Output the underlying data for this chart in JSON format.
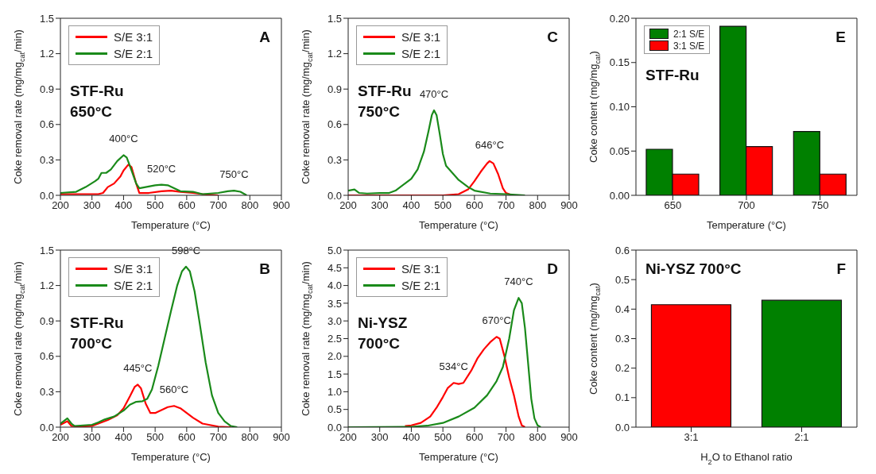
{
  "chart_data": [
    {
      "type": "line",
      "xlabel": "Temperature (°C)",
      "ylabel": "Coke removal rate (mg/mg$_{cat}$/min)",
      "xlim": [
        200,
        900
      ],
      "xticks": [
        200,
        300,
        400,
        500,
        600,
        700,
        800,
        900
      ],
      "ylim": [
        0,
        1.5
      ],
      "yticks": [
        {
          "value": 0,
          "label": "0.0"
        },
        0.3,
        0.6,
        0.9,
        1.2,
        1.5
      ],
      "legend": "top left",
      "annotations": [
        "A",
        "STF-Ru\n650°C",
        {
          "text": "400°C",
          "x": 400,
          "y": 0.34
        },
        {
          "text": "520°C",
          "x": 520,
          "y": 0.09
        },
        {
          "text": "750°C",
          "x": 750,
          "y": 0.04
        }
      ],
      "series": [
        {
          "name": "S/E 3:1",
          "color": "#ff0000",
          "x": [
            200,
            320,
            335,
            350,
            370,
            390,
            400,
            415,
            425,
            440,
            450,
            480,
            520,
            550,
            580,
            620,
            650,
            700
          ],
          "values": [
            0.01,
            0.01,
            0.02,
            0.07,
            0.1,
            0.16,
            0.21,
            0.26,
            0.24,
            0.1,
            0.02,
            0.02,
            0.035,
            0.04,
            0.03,
            0.02,
            0.01,
            0
          ]
        },
        {
          "name": "S/E 2:1",
          "color": "#1a8a1a",
          "x": [
            200,
            250,
            280,
            310,
            320,
            330,
            345,
            360,
            380,
            400,
            410,
            420,
            440,
            450,
            470,
            500,
            520,
            540,
            560,
            580,
            620,
            650,
            700,
            730,
            750,
            770,
            790
          ],
          "values": [
            0.02,
            0.03,
            0.07,
            0.12,
            0.14,
            0.19,
            0.19,
            0.22,
            0.29,
            0.34,
            0.32,
            0.25,
            0.1,
            0.06,
            0.07,
            0.085,
            0.09,
            0.085,
            0.06,
            0.035,
            0.03,
            0.01,
            0.02,
            0.035,
            0.04,
            0.03,
            0
          ]
        }
      ]
    },
    {
      "type": "line",
      "xlabel": "Temperature (°C)",
      "ylabel": "Coke removal rate (mg/mg$_{cat}$/min)",
      "xlim": [
        200,
        900
      ],
      "xticks": [
        200,
        300,
        400,
        500,
        600,
        700,
        800,
        900
      ],
      "ylim": [
        0,
        1.5
      ],
      "yticks": [
        {
          "value": 0,
          "label": "0.0"
        },
        0.3,
        0.6,
        0.9,
        1.2,
        1.5
      ],
      "legend": "top left",
      "annotations": [
        "C",
        "STF-Ru\n750°C",
        {
          "text": "470°C",
          "x": 472,
          "y": 0.72
        },
        {
          "text": "646°C",
          "x": 648,
          "y": 0.29
        }
      ],
      "series": [
        {
          "name": "S/E 3:1",
          "color": "#ff0000",
          "x": [
            200,
            500,
            550,
            580,
            600,
            620,
            640,
            648,
            660,
            675,
            690,
            700,
            720
          ],
          "values": [
            0,
            0,
            0.01,
            0.05,
            0.12,
            0.2,
            0.27,
            0.29,
            0.27,
            0.18,
            0.06,
            0.02,
            0
          ]
        },
        {
          "name": "S/E 2:1",
          "color": "#1a8a1a",
          "x": [
            200,
            220,
            235,
            260,
            300,
            330,
            350,
            380,
            400,
            420,
            440,
            455,
            465,
            472,
            480,
            490,
            500,
            510,
            530,
            550,
            580,
            600,
            650,
            700,
            760
          ],
          "values": [
            0.04,
            0.05,
            0.02,
            0.015,
            0.02,
            0.02,
            0.04,
            0.1,
            0.14,
            0.22,
            0.37,
            0.55,
            0.68,
            0.72,
            0.68,
            0.52,
            0.35,
            0.25,
            0.19,
            0.13,
            0.07,
            0.04,
            0.015,
            0.01,
            0
          ]
        }
      ]
    },
    {
      "type": "bar",
      "xlabel": "Temperature (°C)",
      "ylabel": "Coke content (mg/mg$_{cat}$)",
      "categories": [
        "650",
        "700",
        "750"
      ],
      "ylim": [
        0,
        0.2
      ],
      "yticks": [
        {
          "value": 0,
          "label": "0.00"
        },
        0.05,
        {
          "value": 0.1,
          "label": "0.10"
        },
        0.15,
        {
          "value": 0.2,
          "label": "0.20"
        }
      ],
      "legend": "top left",
      "annotations": [
        "E",
        "STF-Ru"
      ],
      "series": [
        {
          "name": "2:1 S/E",
          "color": "#008000",
          "values": [
            0.052,
            0.191,
            0.072
          ]
        },
        {
          "name": "3:1 S/E",
          "color": "#ff0000",
          "values": [
            0.024,
            0.055,
            0.024
          ]
        }
      ]
    },
    {
      "type": "line",
      "xlabel": "Temperature (°C)",
      "ylabel": "Coke removal rate (mg/mg$_{cat}$/min)",
      "xlim": [
        200,
        900
      ],
      "xticks": [
        200,
        300,
        400,
        500,
        600,
        700,
        800,
        900
      ],
      "ylim": [
        0,
        1.5
      ],
      "yticks": [
        {
          "value": 0,
          "label": "0.0"
        },
        0.3,
        0.6,
        0.9,
        1.2,
        1.5
      ],
      "legend": "top left",
      "annotations": [
        "B",
        "STF-Ru\n700°C",
        {
          "text": "445°C",
          "x": 445,
          "y": 0.36
        },
        {
          "text": "560°C",
          "x": 560,
          "y": 0.18
        },
        {
          "text": "598°C",
          "x": 598,
          "y": 1.36
        }
      ],
      "series": [
        {
          "name": "S/E 3:1",
          "color": "#ff0000",
          "x": [
            200,
            222,
            235,
            260,
            300,
            350,
            380,
            400,
            420,
            435,
            445,
            455,
            470,
            485,
            500,
            520,
            540,
            560,
            580,
            600,
            620,
            650,
            700,
            740
          ],
          "values": [
            0.02,
            0.05,
            0.01,
            0.005,
            0.01,
            0.06,
            0.1,
            0.16,
            0.26,
            0.34,
            0.36,
            0.33,
            0.2,
            0.12,
            0.12,
            0.145,
            0.17,
            0.18,
            0.16,
            0.12,
            0.08,
            0.03,
            0.005,
            0
          ]
        },
        {
          "name": "S/E 2:1",
          "color": "#1a8a1a",
          "x": [
            200,
            222,
            235,
            245,
            300,
            320,
            340,
            370,
            400,
            420,
            440,
            460,
            475,
            490,
            510,
            530,
            550,
            570,
            585,
            598,
            610,
            625,
            640,
            660,
            680,
            700,
            720,
            740,
            760
          ],
          "values": [
            0.03,
            0.075,
            0.03,
            0.01,
            0.02,
            0.04,
            0.065,
            0.09,
            0.14,
            0.19,
            0.215,
            0.22,
            0.24,
            0.32,
            0.52,
            0.75,
            0.98,
            1.2,
            1.32,
            1.36,
            1.32,
            1.15,
            0.9,
            0.55,
            0.27,
            0.12,
            0.05,
            0.01,
            0
          ]
        }
      ]
    },
    {
      "type": "line",
      "xlabel": "Temperature (°C)",
      "ylabel": "Coke removal rate (mg/mg$_{cat}$/min)",
      "xlim": [
        200,
        900
      ],
      "xticks": [
        200,
        300,
        400,
        500,
        600,
        700,
        800,
        900
      ],
      "ylim": [
        0,
        5
      ],
      "yticks": [
        {
          "value": 0,
          "label": "0.0"
        },
        0.5,
        {
          "value": 1,
          "label": "1.0"
        },
        1.5,
        {
          "value": 2,
          "label": "2.0"
        },
        2.5,
        {
          "value": 3,
          "label": "3.0"
        },
        3.5,
        {
          "value": 4,
          "label": "4.0"
        },
        4.5,
        {
          "value": 5,
          "label": "5.0"
        }
      ],
      "legend": "top left",
      "annotations": [
        "D",
        "Ni-YSZ\n700°C",
        {
          "text": "534°C",
          "x": 534,
          "y": 1.25
        },
        {
          "text": "670°C",
          "x": 670,
          "y": 2.55
        },
        {
          "text": "740°C",
          "x": 740,
          "y": 3.65
        }
      ],
      "series": [
        {
          "name": "S/E 3:1",
          "color": "#ff0000",
          "x": [
            380,
            400,
            430,
            460,
            480,
            500,
            515,
            534,
            550,
            565,
            590,
            610,
            630,
            650,
            670,
            680,
            695,
            710,
            725,
            740,
            750,
            760
          ],
          "values": [
            0.03,
            0.05,
            0.12,
            0.3,
            0.55,
            0.85,
            1.1,
            1.25,
            1.22,
            1.25,
            1.6,
            1.95,
            2.2,
            2.4,
            2.55,
            2.5,
            2,
            1.4,
            0.9,
            0.3,
            0.05,
            0
          ]
        },
        {
          "name": "S/E 2:1",
          "color": "#1a8a1a",
          "x": [
            200,
            400,
            450,
            500,
            550,
            600,
            640,
            670,
            690,
            710,
            725,
            740,
            750,
            760,
            770,
            780,
            790,
            800,
            810
          ],
          "values": [
            0,
            0.01,
            0.04,
            0.12,
            0.3,
            0.55,
            0.9,
            1.3,
            1.7,
            2.5,
            3.3,
            3.65,
            3.5,
            2.8,
            1.8,
            0.8,
            0.25,
            0.05,
            0
          ]
        }
      ]
    },
    {
      "type": "bar",
      "xlabel": "H$_{2}$O to Ethanol ratio",
      "ylabel": "Coke content (mg/mg$_{cat}$)",
      "categories": [
        "3:1",
        "2:1"
      ],
      "ylim": [
        0,
        0.6
      ],
      "yticks": [
        {
          "value": 0,
          "label": "0.0"
        },
        0.1,
        0.2,
        0.3,
        0.4,
        0.5,
        0.6
      ],
      "annotations": [
        "F",
        "Ni-YSZ 700°C"
      ],
      "values": [
        0.415,
        0.43
      ],
      "colors": [
        "#ff0000",
        "#008000"
      ]
    }
  ]
}
